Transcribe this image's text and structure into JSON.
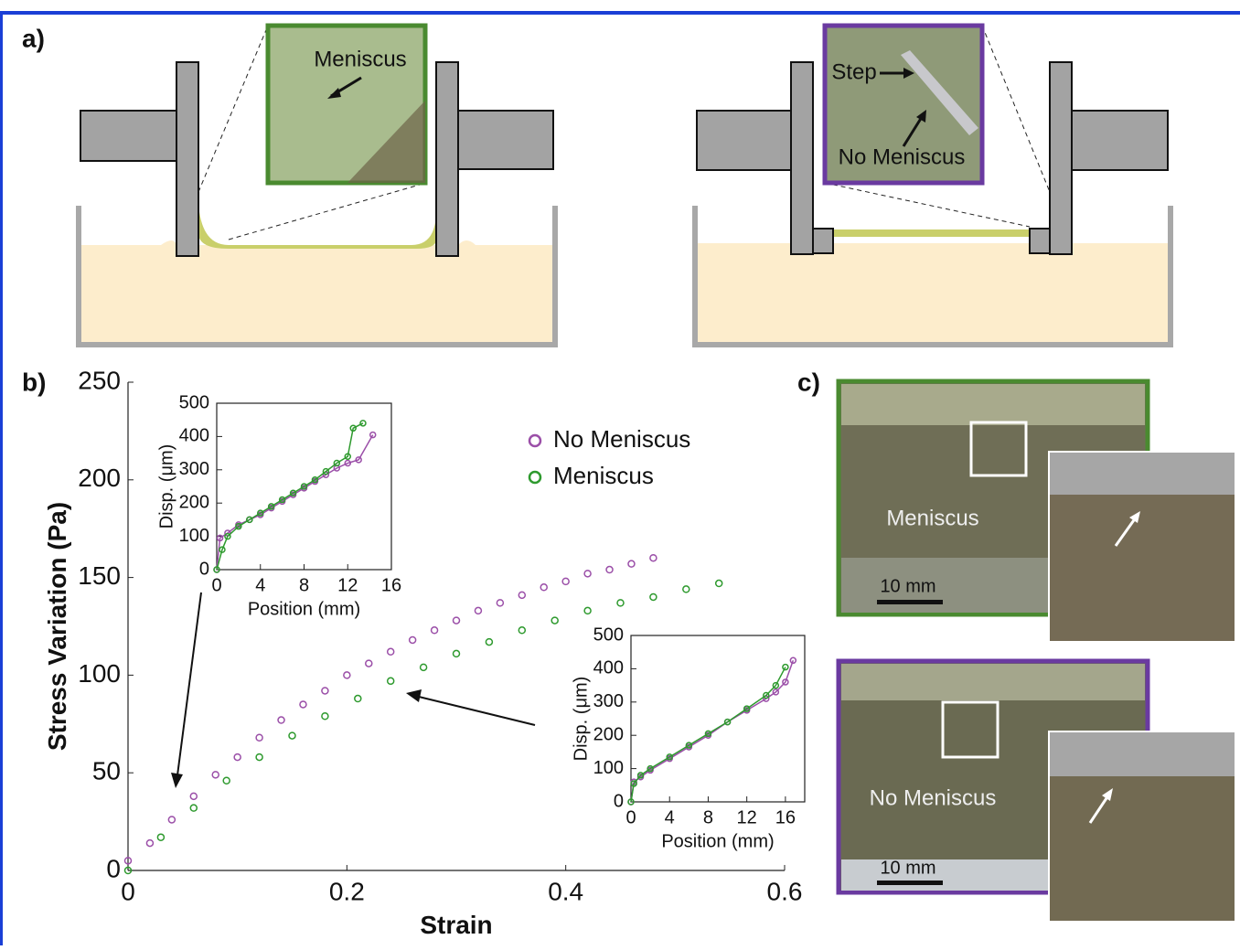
{
  "labels": {
    "a": "a)",
    "b": "b)",
    "c": "c)"
  },
  "diagram": {
    "meniscus": "Meniscus",
    "step": "Step",
    "no_meniscus": "No Meniscus"
  },
  "photos": {
    "meniscus": "Meniscus",
    "no_meniscus": "No Meniscus",
    "scale_top": "10 mm",
    "scale_bottom": "10 mm"
  },
  "chart_data": [
    {
      "type": "scatter",
      "xlabel": "Strain",
      "ylabel": "Stress Variation (Pa)",
      "xlim": [
        0,
        0.6
      ],
      "ylim": [
        0,
        250
      ],
      "xticks": [
        0,
        0.2,
        0.4,
        0.6
      ],
      "yticks": [
        0,
        50,
        100,
        150,
        200,
        250
      ],
      "series": [
        {
          "name": "No Meniscus",
          "color": "#9b4fa8",
          "x": [
            0,
            0.02,
            0.04,
            0.06,
            0.08,
            0.1,
            0.12,
            0.14,
            0.16,
            0.18,
            0.2,
            0.22,
            0.24,
            0.26,
            0.28,
            0.3,
            0.32,
            0.34,
            0.36,
            0.38,
            0.4,
            0.42,
            0.44,
            0.46,
            0.48
          ],
          "values": [
            5,
            14,
            26,
            38,
            49,
            58,
            68,
            77,
            85,
            92,
            100,
            106,
            112,
            118,
            123,
            128,
            133,
            137,
            141,
            145,
            148,
            152,
            154,
            157,
            160
          ]
        },
        {
          "name": "Meniscus",
          "color": "#2e9a2e",
          "x": [
            0,
            0.03,
            0.06,
            0.09,
            0.12,
            0.15,
            0.18,
            0.21,
            0.24,
            0.27,
            0.3,
            0.33,
            0.36,
            0.39,
            0.42,
            0.45,
            0.48,
            0.51,
            0.54
          ],
          "values": [
            0,
            17,
            32,
            46,
            58,
            69,
            79,
            88,
            97,
            104,
            111,
            117,
            123,
            128,
            133,
            137,
            140,
            144,
            147
          ]
        }
      ]
    },
    {
      "type": "line",
      "xlabel": "Position (mm)",
      "ylabel": "Disp. (μm)",
      "xlim": [
        0,
        16
      ],
      "ylim": [
        0,
        500
      ],
      "xticks": [
        0,
        4,
        8,
        12,
        16
      ],
      "yticks": [
        0,
        100,
        200,
        300,
        400,
        500
      ],
      "series": [
        {
          "name": "No Meniscus",
          "color": "#9b4fa8",
          "x": [
            0,
            0.3,
            1,
            2,
            3,
            4,
            5,
            6,
            7,
            8,
            9,
            10,
            11,
            12,
            13,
            14.3
          ],
          "values": [
            0,
            95,
            110,
            135,
            150,
            165,
            185,
            205,
            225,
            245,
            265,
            285,
            305,
            320,
            330,
            405
          ]
        },
        {
          "name": "Meniscus",
          "color": "#2e9a2e",
          "x": [
            0,
            0.5,
            1,
            2,
            3,
            4,
            5,
            6,
            7,
            8,
            9,
            10,
            11,
            12,
            12.5,
            13.4
          ],
          "values": [
            0,
            60,
            100,
            130,
            150,
            170,
            190,
            210,
            230,
            250,
            270,
            295,
            320,
            340,
            425,
            440
          ]
        }
      ]
    },
    {
      "type": "line",
      "xlabel": "Position (mm)",
      "ylabel": "Disp. (μm)",
      "xlim": [
        0,
        18
      ],
      "ylim": [
        0,
        500
      ],
      "xticks": [
        0,
        4,
        8,
        12,
        16
      ],
      "yticks": [
        0,
        100,
        200,
        300,
        400,
        500
      ],
      "series": [
        {
          "name": "No Meniscus",
          "color": "#9b4fa8",
          "x": [
            0,
            0.3,
            1,
            2,
            4,
            6,
            8,
            10,
            12,
            14,
            15,
            16,
            16.8
          ],
          "values": [
            0,
            60,
            75,
            95,
            130,
            165,
            200,
            240,
            275,
            310,
            330,
            360,
            425
          ]
        },
        {
          "name": "Meniscus",
          "color": "#2e9a2e",
          "x": [
            0,
            0.3,
            1,
            2,
            4,
            6,
            8,
            10,
            12,
            14,
            15,
            16
          ],
          "values": [
            0,
            55,
            80,
            100,
            135,
            170,
            205,
            240,
            280,
            320,
            350,
            405
          ]
        }
      ]
    }
  ]
}
